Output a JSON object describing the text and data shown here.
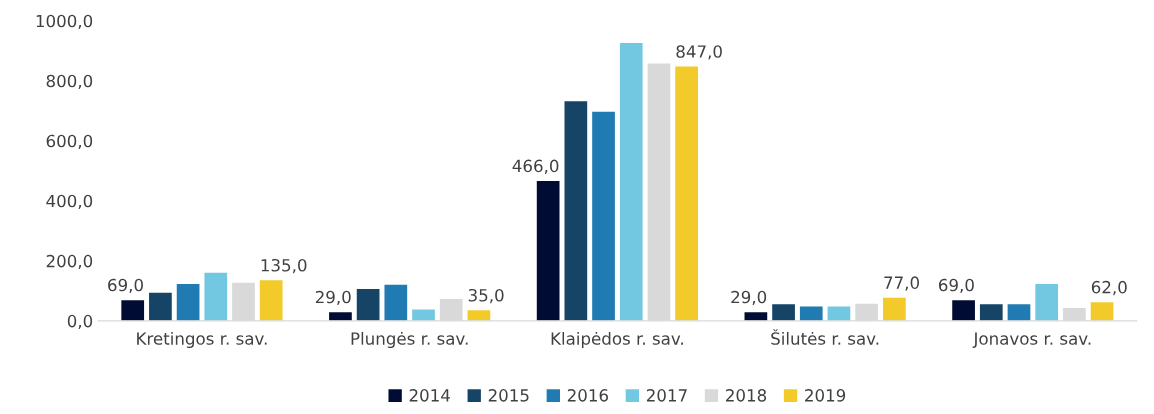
{
  "chart_data": {
    "type": "bar",
    "categories": [
      "Kretingos r. sav.",
      "Plungės r. sav.",
      "Klaipėdos r. sav.",
      "Šilutės r. sav.",
      "Jonavos r. sav."
    ],
    "series": [
      {
        "name": "2014",
        "color": "#000c33",
        "values": [
          69,
          29,
          466,
          29,
          69
        ],
        "value_labels": [
          "69,0",
          "29,0",
          "466,0",
          "29,0",
          "69,0"
        ]
      },
      {
        "name": "2015",
        "color": "#154466",
        "values": [
          94,
          106,
          732,
          55,
          55
        ]
      },
      {
        "name": "2016",
        "color": "#217bb3",
        "values": [
          123,
          120,
          697,
          48,
          55
        ]
      },
      {
        "name": "2017",
        "color": "#72c8e0",
        "values": [
          160,
          38,
          926,
          48,
          123
        ]
      },
      {
        "name": "2018",
        "color": "#d9d9d9",
        "values": [
          127,
          73,
          857,
          57,
          43
        ]
      },
      {
        "name": "2019",
        "color": "#f2ca29",
        "values": [
          135,
          35,
          847,
          77,
          62
        ],
        "value_labels": [
          "135,0",
          "35,0",
          "847,0",
          "77,0",
          "62,0"
        ]
      }
    ],
    "ylim": [
      0,
      1000
    ],
    "yticks": [
      {
        "value": 0,
        "label": "0,0"
      },
      {
        "value": 200,
        "label": "200,0"
      },
      {
        "value": 400,
        "label": "400,0"
      },
      {
        "value": 600,
        "label": "600,0"
      },
      {
        "value": 800,
        "label": "800,0"
      },
      {
        "value": 1000,
        "label": "1000,0"
      }
    ],
    "grid": false,
    "legend": "bottom"
  }
}
